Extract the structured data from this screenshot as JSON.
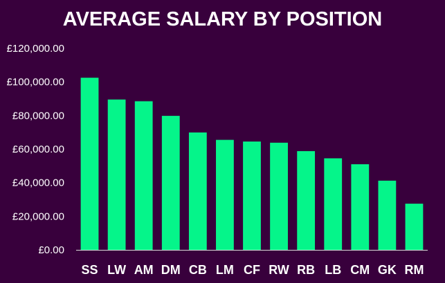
{
  "chart_data": {
    "type": "bar",
    "title": "AVERAGE SALARY BY POSITION",
    "xlabel": "",
    "ylabel": "",
    "categories": [
      "SS",
      "LW",
      "AM",
      "DM",
      "CB",
      "LM",
      "CF",
      "RW",
      "RB",
      "LB",
      "CM",
      "GK",
      "RM"
    ],
    "values": [
      102500,
      89500,
      88500,
      79800,
      69900,
      65500,
      64500,
      63800,
      58800,
      54500,
      51000,
      41200,
      27500
    ],
    "ylim": [
      0,
      120000
    ],
    "yticks": [
      0,
      20000,
      40000,
      60000,
      80000,
      100000,
      120000
    ],
    "ytick_labels": [
      "£0.00",
      "£20,000.00",
      "£40,000.00",
      "£60,000.00",
      "£80,000.00",
      "£100,000.00",
      "£120,000.00"
    ],
    "grid": false,
    "legend": "none",
    "bar_color": "#05f58a",
    "background_color": "#38003c",
    "text_color": "#ffffff",
    "axis_color": "#d9d9d9"
  }
}
